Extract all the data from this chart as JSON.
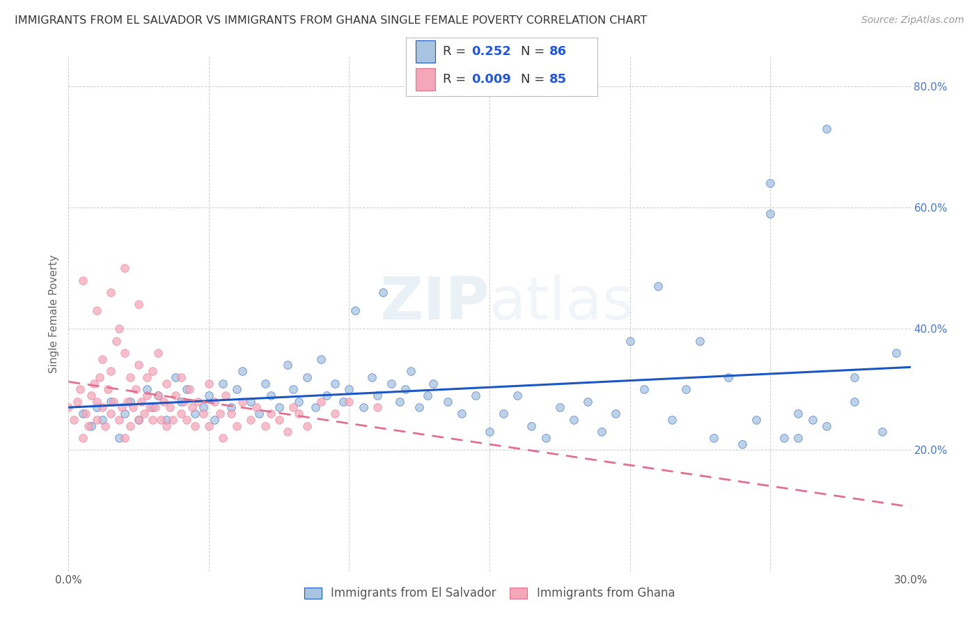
{
  "title": "IMMIGRANTS FROM EL SALVADOR VS IMMIGRANTS FROM GHANA SINGLE FEMALE POVERTY CORRELATION CHART",
  "source": "Source: ZipAtlas.com",
  "ylabel": "Single Female Poverty",
  "x_min": 0.0,
  "x_max": 0.3,
  "y_min": 0.0,
  "y_max": 0.85,
  "legend_labels": [
    "Immigrants from El Salvador",
    "Immigrants from Ghana"
  ],
  "R_el_salvador": 0.252,
  "N_el_salvador": 86,
  "R_ghana": 0.009,
  "N_ghana": 85,
  "color_el_salvador": "#a8c4e0",
  "color_ghana": "#f4a7b9",
  "line_color_el_salvador": "#1a56c4",
  "line_color_ghana": "#e07090",
  "watermark": "ZIPatlas",
  "background_color": "#ffffff",
  "grid_color": "#cccccc",
  "title_color": "#333333",
  "axis_label_color": "#666666",
  "tick_label_color_right": "#4477cc",
  "el_salvador_x": [
    0.005,
    0.008,
    0.01,
    0.012,
    0.015,
    0.018,
    0.02,
    0.022,
    0.025,
    0.028,
    0.03,
    0.032,
    0.035,
    0.038,
    0.04,
    0.042,
    0.045,
    0.048,
    0.05,
    0.052,
    0.055,
    0.058,
    0.06,
    0.062,
    0.065,
    0.068,
    0.07,
    0.072,
    0.075,
    0.078,
    0.08,
    0.082,
    0.085,
    0.088,
    0.09,
    0.092,
    0.095,
    0.098,
    0.1,
    0.102,
    0.105,
    0.108,
    0.11,
    0.112,
    0.115,
    0.118,
    0.12,
    0.122,
    0.125,
    0.128,
    0.13,
    0.135,
    0.14,
    0.145,
    0.15,
    0.155,
    0.16,
    0.165,
    0.17,
    0.175,
    0.18,
    0.185,
    0.19,
    0.195,
    0.2,
    0.205,
    0.21,
    0.215,
    0.22,
    0.225,
    0.23,
    0.235,
    0.24,
    0.245,
    0.25,
    0.255,
    0.26,
    0.265,
    0.27,
    0.28,
    0.25,
    0.26,
    0.27,
    0.28,
    0.29,
    0.295
  ],
  "el_salvador_y": [
    0.26,
    0.24,
    0.27,
    0.25,
    0.28,
    0.22,
    0.26,
    0.28,
    0.25,
    0.3,
    0.27,
    0.29,
    0.25,
    0.32,
    0.28,
    0.3,
    0.26,
    0.27,
    0.29,
    0.25,
    0.31,
    0.27,
    0.3,
    0.33,
    0.28,
    0.26,
    0.31,
    0.29,
    0.27,
    0.34,
    0.3,
    0.28,
    0.32,
    0.27,
    0.35,
    0.29,
    0.31,
    0.28,
    0.3,
    0.43,
    0.27,
    0.32,
    0.29,
    0.46,
    0.31,
    0.28,
    0.3,
    0.33,
    0.27,
    0.29,
    0.31,
    0.28,
    0.26,
    0.29,
    0.23,
    0.26,
    0.29,
    0.24,
    0.22,
    0.27,
    0.25,
    0.28,
    0.23,
    0.26,
    0.38,
    0.3,
    0.47,
    0.25,
    0.3,
    0.38,
    0.22,
    0.32,
    0.21,
    0.25,
    0.59,
    0.22,
    0.22,
    0.25,
    0.73,
    0.28,
    0.64,
    0.26,
    0.24,
    0.32,
    0.23,
    0.36
  ],
  "ghana_x": [
    0.0,
    0.002,
    0.003,
    0.004,
    0.005,
    0.006,
    0.007,
    0.008,
    0.009,
    0.01,
    0.01,
    0.011,
    0.012,
    0.012,
    0.013,
    0.014,
    0.015,
    0.015,
    0.016,
    0.017,
    0.018,
    0.018,
    0.019,
    0.02,
    0.02,
    0.021,
    0.022,
    0.022,
    0.023,
    0.024,
    0.025,
    0.025,
    0.026,
    0.027,
    0.028,
    0.028,
    0.029,
    0.03,
    0.03,
    0.031,
    0.032,
    0.032,
    0.033,
    0.034,
    0.035,
    0.035,
    0.036,
    0.037,
    0.038,
    0.04,
    0.04,
    0.041,
    0.042,
    0.043,
    0.044,
    0.045,
    0.046,
    0.048,
    0.05,
    0.05,
    0.052,
    0.054,
    0.055,
    0.056,
    0.058,
    0.06,
    0.062,
    0.065,
    0.067,
    0.07,
    0.072,
    0.075,
    0.078,
    0.08,
    0.082,
    0.085,
    0.09,
    0.095,
    0.1,
    0.11,
    0.005,
    0.01,
    0.015,
    0.02,
    0.025
  ],
  "ghana_y": [
    0.27,
    0.25,
    0.28,
    0.3,
    0.22,
    0.26,
    0.24,
    0.29,
    0.31,
    0.25,
    0.28,
    0.32,
    0.27,
    0.35,
    0.24,
    0.3,
    0.26,
    0.33,
    0.28,
    0.38,
    0.25,
    0.4,
    0.27,
    0.22,
    0.36,
    0.28,
    0.24,
    0.32,
    0.27,
    0.3,
    0.25,
    0.34,
    0.28,
    0.26,
    0.32,
    0.29,
    0.27,
    0.25,
    0.33,
    0.27,
    0.29,
    0.36,
    0.25,
    0.28,
    0.24,
    0.31,
    0.27,
    0.25,
    0.29,
    0.26,
    0.32,
    0.28,
    0.25,
    0.3,
    0.27,
    0.24,
    0.28,
    0.26,
    0.24,
    0.31,
    0.28,
    0.26,
    0.22,
    0.29,
    0.26,
    0.24,
    0.28,
    0.25,
    0.27,
    0.24,
    0.26,
    0.25,
    0.23,
    0.27,
    0.26,
    0.24,
    0.28,
    0.26,
    0.28,
    0.27,
    0.48,
    0.43,
    0.46,
    0.5,
    0.44
  ]
}
